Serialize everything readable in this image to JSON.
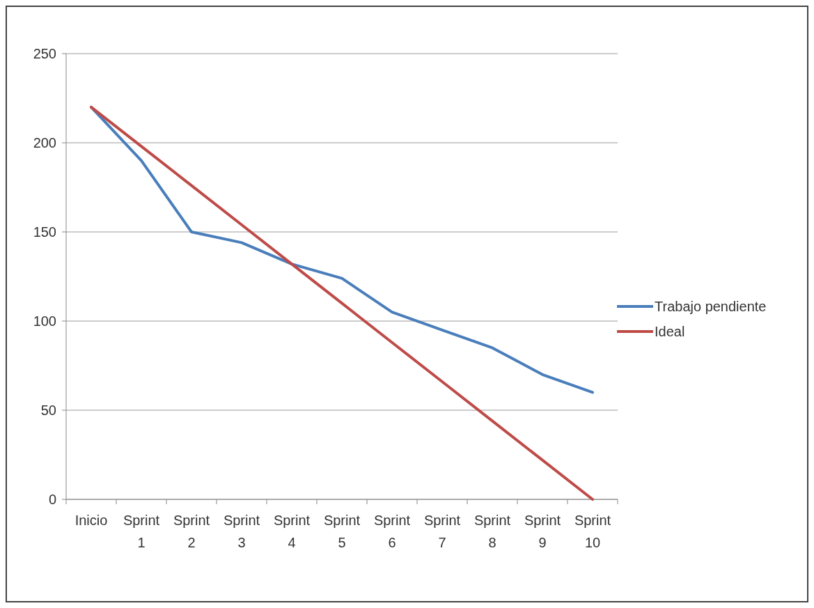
{
  "chart_data": {
    "type": "line",
    "categories": [
      "Inicio",
      "Sprint 1",
      "Sprint 2",
      "Sprint 3",
      "Sprint 4",
      "Sprint 5",
      "Sprint 6",
      "Sprint 7",
      "Sprint 8",
      "Sprint 9",
      "Sprint 10"
    ],
    "series": [
      {
        "name": "Trabajo pendiente",
        "color": "#4a7ebb",
        "values": [
          220,
          190,
          150,
          144,
          132,
          124,
          105,
          95,
          85,
          70,
          60
        ]
      },
      {
        "name": "Ideal",
        "color": "#be4b48",
        "values": [
          220,
          198,
          176,
          154,
          132,
          110,
          88,
          66,
          44,
          22,
          0
        ]
      }
    ],
    "ylim": [
      0,
      250
    ],
    "yticks": [
      0,
      50,
      100,
      150,
      200,
      250
    ],
    "grid": "y",
    "legend": "right",
    "marker": "none",
    "line_style": "solid"
  }
}
